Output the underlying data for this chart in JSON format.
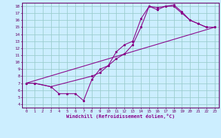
{
  "xlabel": "Windchill (Refroidissement éolien,°C)",
  "background_color": "#cceeff",
  "grid_color": "#99cccc",
  "line_color": "#880088",
  "spine_color": "#660066",
  "xlim": [
    -0.5,
    23.5
  ],
  "ylim": [
    3.5,
    18.5
  ],
  "xticks": [
    0,
    1,
    2,
    3,
    4,
    5,
    6,
    7,
    8,
    9,
    10,
    11,
    12,
    13,
    14,
    15,
    16,
    17,
    18,
    19,
    20,
    21,
    22,
    23
  ],
  "yticks": [
    4,
    5,
    6,
    7,
    8,
    9,
    10,
    11,
    12,
    13,
    14,
    15,
    16,
    17,
    18
  ],
  "curve1_x": [
    0,
    1,
    3,
    4,
    5,
    6,
    7,
    8,
    9,
    10,
    11,
    12,
    13,
    14,
    15,
    16,
    17,
    18,
    19,
    20,
    21,
    22,
    23
  ],
  "curve1_y": [
    7,
    7,
    6.5,
    5.5,
    5.5,
    5.5,
    4.5,
    7.5,
    9.0,
    9.5,
    11.5,
    12.5,
    13.0,
    16.2,
    18.0,
    17.8,
    18.0,
    18.2,
    17.2,
    16.0,
    15.5,
    15.0,
    15.0
  ],
  "curve2_x": [
    0,
    1,
    3,
    8,
    9,
    10,
    11,
    12,
    13,
    14,
    15,
    16,
    17,
    18,
    19,
    20,
    21,
    22,
    23
  ],
  "curve2_y": [
    7,
    7,
    6.5,
    8.0,
    8.5,
    9.5,
    10.5,
    11.2,
    12.5,
    15.0,
    18.0,
    17.5,
    18.0,
    18.0,
    17.0,
    16.0,
    15.5,
    15.0,
    15.0
  ],
  "curve3_x": [
    0,
    23
  ],
  "curve3_y": [
    7,
    15
  ]
}
